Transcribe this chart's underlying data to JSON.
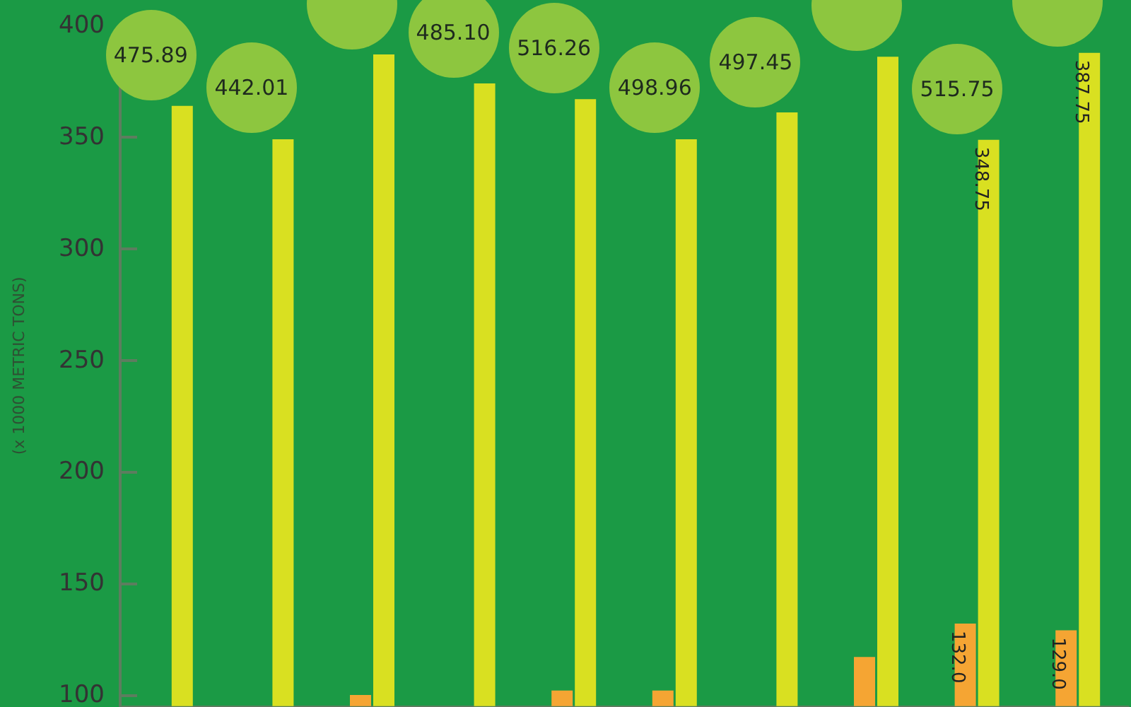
{
  "chart_data": {
    "type": "bar",
    "ylabel": "(x 1000 METRIC TONS)",
    "categories": [
      null,
      null,
      null,
      null,
      null,
      null,
      null,
      null,
      null,
      null
    ],
    "series": [
      {
        "color": "#f5a533",
        "values": [
          null,
          null,
          100,
          null,
          102,
          102,
          null,
          117,
          132.0,
          129.0
        ],
        "value_labels": [
          null,
          null,
          null,
          null,
          null,
          null,
          null,
          null,
          "132.0",
          "129.0"
        ]
      },
      {
        "color": "#d9e021",
        "values": [
          364,
          349,
          387,
          374,
          367,
          349,
          361,
          386,
          348.75,
          387.75
        ],
        "value_labels": [
          null,
          null,
          null,
          null,
          null,
          null,
          null,
          null,
          "348.75",
          "387.75"
        ]
      }
    ],
    "annotations": [
      "475.89",
      "442.01",
      null,
      "485.10",
      "516.26",
      "498.96",
      "497.45",
      null,
      "515.75",
      null
    ],
    "ylim": [
      95,
      400
    ],
    "yticks": [
      100,
      150,
      200,
      250,
      300,
      350,
      400
    ],
    "grid": false,
    "tick_labels": "y"
  }
}
